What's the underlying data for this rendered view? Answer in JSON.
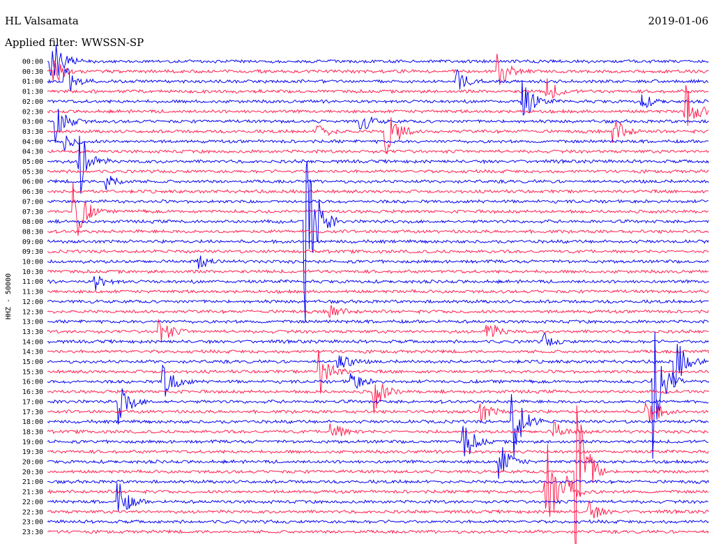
{
  "chart_data": {
    "type": "line",
    "title": "HL Valsamata",
    "subtitle": "Applied filter: WWSSN-SP",
    "date": "2019-01-06",
    "ylabel": "HHZ - 50000",
    "xlabel": "",
    "grid": false,
    "colors": {
      "trace_a": "#0000ee",
      "trace_b": "#ff1e4e",
      "text": "#000000",
      "background": "#ffffff"
    },
    "traces": [
      "00:00",
      "00:30",
      "01:00",
      "01:30",
      "02:00",
      "02:30",
      "03:00",
      "03:30",
      "04:00",
      "04:30",
      "05:00",
      "05:30",
      "06:00",
      "06:30",
      "07:00",
      "07:30",
      "08:00",
      "08:30",
      "09:00",
      "09:30",
      "10:00",
      "10:30",
      "11:00",
      "11:30",
      "12:00",
      "12:30",
      "13:00",
      "13:30",
      "14:00",
      "14:30",
      "15:00",
      "15:30",
      "16:00",
      "16:30",
      "17:00",
      "17:30",
      "18:00",
      "18:30",
      "19:00",
      "19:30",
      "20:00",
      "20:30",
      "21:00",
      "21:30",
      "22:00",
      "22:30",
      "23:00",
      "23:30"
    ],
    "events": [
      {
        "trace": "00:00",
        "minute": 0.2,
        "amplitude": 6.0
      },
      {
        "trace": "00:30",
        "minute": 0.3,
        "amplitude": 3.0
      },
      {
        "trace": "01:00",
        "minute": 0.8,
        "amplitude": 3.5
      },
      {
        "trace": "03:00",
        "minute": 0.4,
        "amplitude": 4.0
      },
      {
        "trace": "04:00",
        "minute": 0.8,
        "amplitude": 1.5
      },
      {
        "trace": "05:00",
        "minute": 1.5,
        "amplitude": 6.0
      },
      {
        "trace": "06:00",
        "minute": 2.7,
        "amplitude": 1.8
      },
      {
        "trace": "07:30",
        "minute": 1.2,
        "amplitude": 7.5
      },
      {
        "trace": "10:00",
        "minute": 6.8,
        "amplitude": 1.4
      },
      {
        "trace": "11:00",
        "minute": 2.2,
        "amplitude": 1.4
      },
      {
        "trace": "03:00",
        "minute": 14.2,
        "amplitude": 2.2
      },
      {
        "trace": "08:00",
        "minute": 11.7,
        "amplitude": 20.0
      },
      {
        "trace": "03:30",
        "minute": 12.3,
        "amplitude": 1.5
      },
      {
        "trace": "03:30",
        "minute": 15.4,
        "amplitude": 6.0
      },
      {
        "trace": "12:30",
        "minute": 12.8,
        "amplitude": 1.8
      },
      {
        "trace": "00:30",
        "minute": 20.5,
        "amplitude": 3.0
      },
      {
        "trace": "01:00",
        "minute": 18.6,
        "amplitude": 2.2
      },
      {
        "trace": "02:00",
        "minute": 21.6,
        "amplitude": 4.0
      },
      {
        "trace": "01:30",
        "minute": 22.7,
        "amplitude": 2.2
      },
      {
        "trace": "03:30",
        "minute": 25.7,
        "amplitude": 2.8
      },
      {
        "trace": "02:30",
        "minute": 29.0,
        "amplitude": 4.5
      },
      {
        "trace": "02:00",
        "minute": 27.0,
        "amplitude": 1.4
      },
      {
        "trace": "13:30",
        "minute": 20.0,
        "amplitude": 2.0
      },
      {
        "trace": "14:00",
        "minute": 22.5,
        "amplitude": 1.5
      },
      {
        "trace": "20:00",
        "minute": 20.5,
        "amplitude": 4.0
      },
      {
        "trace": "21:30",
        "minute": 22.6,
        "amplitude": 12.0
      },
      {
        "trace": "22:30",
        "minute": 24.6,
        "amplitude": 2.0
      },
      {
        "trace": "17:00",
        "minute": 3.3,
        "amplitude": 4.0
      },
      {
        "trace": "22:00",
        "minute": 3.2,
        "amplitude": 4.0
      },
      {
        "trace": "16:00",
        "minute": 5.3,
        "amplitude": 4.0
      },
      {
        "trace": "13:30",
        "minute": 5.1,
        "amplitude": 3.0
      },
      {
        "trace": "15:30",
        "minute": 12.4,
        "amplitude": 4.5
      },
      {
        "trace": "15:00",
        "minute": 13.2,
        "amplitude": 2.5
      },
      {
        "trace": "16:30",
        "minute": 14.8,
        "amplitude": 4.0
      },
      {
        "trace": "16:00",
        "minute": 13.8,
        "amplitude": 2.0
      },
      {
        "trace": "18:30",
        "minute": 12.9,
        "amplitude": 2.2
      },
      {
        "trace": "17:30",
        "minute": 19.7,
        "amplitude": 2.0
      },
      {
        "trace": "19:00",
        "minute": 18.9,
        "amplitude": 4.0
      },
      {
        "trace": "18:00",
        "minute": 21.1,
        "amplitude": 8.0
      },
      {
        "trace": "18:30",
        "minute": 23.0,
        "amplitude": 1.8
      },
      {
        "trace": "20:30",
        "minute": 24.0,
        "amplitude": 18.0
      },
      {
        "trace": "21:30",
        "minute": 23.6,
        "amplitude": 3.0
      },
      {
        "trace": "17:30",
        "minute": 27.2,
        "amplitude": 4.0
      },
      {
        "trace": "16:00",
        "minute": 27.5,
        "amplitude": 14.0
      },
      {
        "trace": "15:00",
        "minute": 28.5,
        "amplitude": 5.0
      }
    ]
  }
}
